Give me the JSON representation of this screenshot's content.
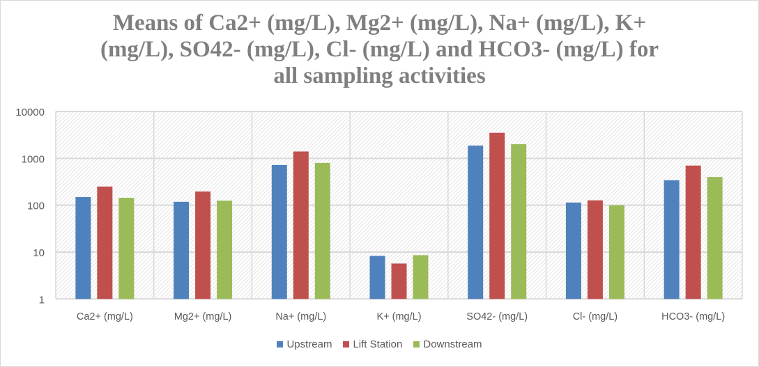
{
  "chart_data": {
    "type": "bar",
    "title_lines": [
      "Means of Ca2+ (mg/L), Mg2+ (mg/L), Na+ (mg/L), K+",
      "(mg/L), SO42- (mg/L), Cl- (mg/L) and HCO3- (mg/L) for",
      "all sampling activities"
    ],
    "xlabel": "",
    "ylabel": "",
    "y_scale": "log",
    "ylim": [
      1,
      10000
    ],
    "y_ticks": [
      "1",
      "10",
      "100",
      "1000",
      "10000"
    ],
    "grid": true,
    "legend_position": "bottom",
    "categories": [
      "Ca2+ (mg/L)",
      "Mg2+ (mg/L)",
      "Na+ (mg/L)",
      "K+ (mg/L)",
      "SO42- (mg/L)",
      "Cl- (mg/L)",
      "HCO3- (mg/L)"
    ],
    "series": [
      {
        "name": "Upstream",
        "color": "#4f81bd",
        "values": [
          149,
          118,
          720,
          8.3,
          1870,
          114,
          340
        ]
      },
      {
        "name": "Lift Station",
        "color": "#c0504d",
        "values": [
          250,
          196,
          1400,
          5.7,
          3500,
          127,
          700
        ]
      },
      {
        "name": "Downstream",
        "color": "#9bbb59",
        "values": [
          144,
          125,
          800,
          8.6,
          2000,
          100,
          400
        ]
      }
    ]
  }
}
